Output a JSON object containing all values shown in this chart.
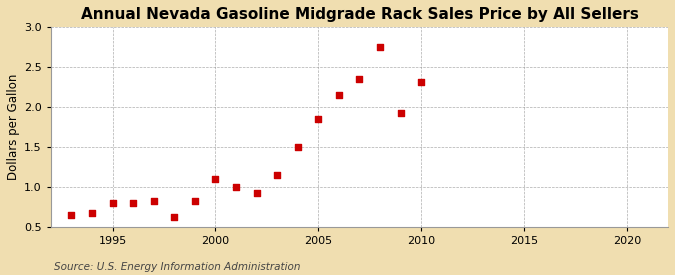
{
  "title": "Annual Nevada Gasoline Midgrade Rack Sales Price by All Sellers",
  "ylabel": "Dollars per Gallon",
  "source": "Source: U.S. Energy Information Administration",
  "fig_background_color": "#f0deb0",
  "plot_background_color": "#ffffff",
  "years": [
    1993,
    1994,
    1995,
    1996,
    1997,
    1998,
    1999,
    2000,
    2001,
    2002,
    2003,
    2004,
    2005,
    2006,
    2007,
    2008,
    2009,
    2010
  ],
  "values": [
    0.65,
    0.68,
    0.8,
    0.8,
    0.82,
    0.62,
    0.83,
    1.1,
    1.0,
    0.93,
    1.15,
    1.5,
    1.85,
    2.15,
    2.35,
    2.75,
    1.93,
    2.32
  ],
  "marker_color": "#cc0000",
  "marker_size": 4,
  "xlim": [
    1992,
    2022
  ],
  "ylim": [
    0.5,
    3.0
  ],
  "yticks": [
    0.5,
    1.0,
    1.5,
    2.0,
    2.5,
    3.0
  ],
  "xticks": [
    1995,
    2000,
    2005,
    2010,
    2015,
    2020
  ],
  "grid_color": "#999999",
  "title_fontsize": 11,
  "label_fontsize": 8.5,
  "tick_fontsize": 8,
  "source_fontsize": 7.5
}
